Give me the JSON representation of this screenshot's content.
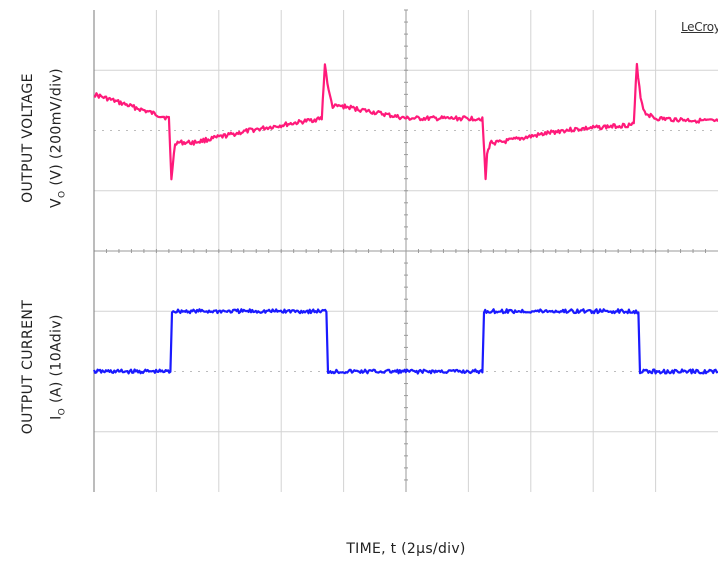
{
  "brand": "LeCroy",
  "labels": {
    "voltage_title": "OUTPUT VOLTAGE",
    "voltage_axis_main": "V",
    "voltage_axis_sub": "O",
    "voltage_axis_rest": " (V) (200mV/div)",
    "current_title": "OUTPUT CURRENT",
    "current_axis_main": "I",
    "current_axis_sub": "O",
    "current_axis_rest": " (A)  (10Adiv)",
    "time_axis": "TIME, t (2μs/div)"
  },
  "colors": {
    "voltage_trace": "#ff1a7a",
    "current_trace": "#1a1aff",
    "grid": "#d3d3d3",
    "center_axis": "#9a9a9a"
  },
  "chart_data": {
    "type": "line",
    "x_unit": "μs",
    "x_scale_per_div": 2,
    "x_range": [
      0,
      20
    ],
    "grid": true,
    "panels": [
      {
        "name": "Output Voltage",
        "unit": "mV",
        "scale_per_div": 200,
        "divisions": 4,
        "y_range": [
          -400,
          400
        ],
        "series": [
          {
            "color": "#ff1a7a",
            "x": [
              0,
              2.4,
              2.48,
              2.56,
              2.6,
              2.8,
              3.2,
              5,
              7.3,
              7.4,
              7.52,
              7.65,
              8,
              9,
              10,
              12.45,
              12.55,
              12.6,
              12.7,
              13,
              15,
              17.3,
              17.4,
              17.52,
              17.65,
              18,
              20
            ],
            "y": [
              120,
              40,
              -160,
              -80,
              -40,
              -40,
              -40,
              0,
              40,
              220,
              130,
              80,
              80,
              60,
              40,
              40,
              -160,
              -80,
              -40,
              -40,
              0,
              20,
              220,
              110,
              60,
              40,
              30
            ]
          }
        ]
      },
      {
        "name": "Output Current",
        "unit": "A",
        "scale_per_div": 10,
        "divisions": 4,
        "y_range": [
          -20,
          20
        ],
        "series": [
          {
            "color": "#1a1aff",
            "x": [
              0,
              2.45,
              2.5,
              7.45,
              7.5,
              12.45,
              12.5,
              17.45,
              17.5,
              20
            ],
            "y": [
              0,
              0,
              10,
              10,
              0,
              0,
              10,
              10,
              0,
              0
            ]
          }
        ]
      }
    ]
  }
}
